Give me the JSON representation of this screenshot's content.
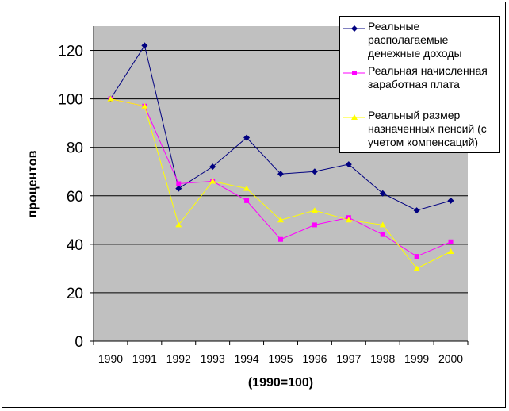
{
  "chart_data": {
    "type": "line",
    "x": [
      "1990",
      "1991",
      "1992",
      "1993",
      "1994",
      "1995",
      "1996",
      "1997",
      "1998",
      "1999",
      "2000"
    ],
    "xlabel": "(1990=100)",
    "ylabel": "процентов",
    "ylim": [
      0,
      130
    ],
    "yticks": [
      "0",
      "20",
      "40",
      "60",
      "80",
      "100",
      "120"
    ],
    "grid": true,
    "legend_position": "top-right",
    "plot_background": "#C0C0C0",
    "series": [
      {
        "name": "Реальные располагаемые денежные доходы",
        "color": "#000080",
        "marker": "diamond",
        "values": [
          100,
          122,
          63,
          72,
          84,
          69,
          70,
          73,
          61,
          54,
          58
        ]
      },
      {
        "name": "Реальная начисленная заработная плата",
        "color": "#FF00FF",
        "marker": "square",
        "values": [
          100,
          97,
          65,
          66,
          58,
          42,
          48,
          51,
          44,
          35,
          41
        ]
      },
      {
        "name": "Реальный размер назначенных пенсий (с учетом компенсаций)",
        "color": "#FFFF00",
        "marker": "triangle",
        "values": [
          100,
          97,
          48,
          66,
          63,
          50,
          54,
          50,
          48,
          30,
          37
        ]
      }
    ]
  }
}
